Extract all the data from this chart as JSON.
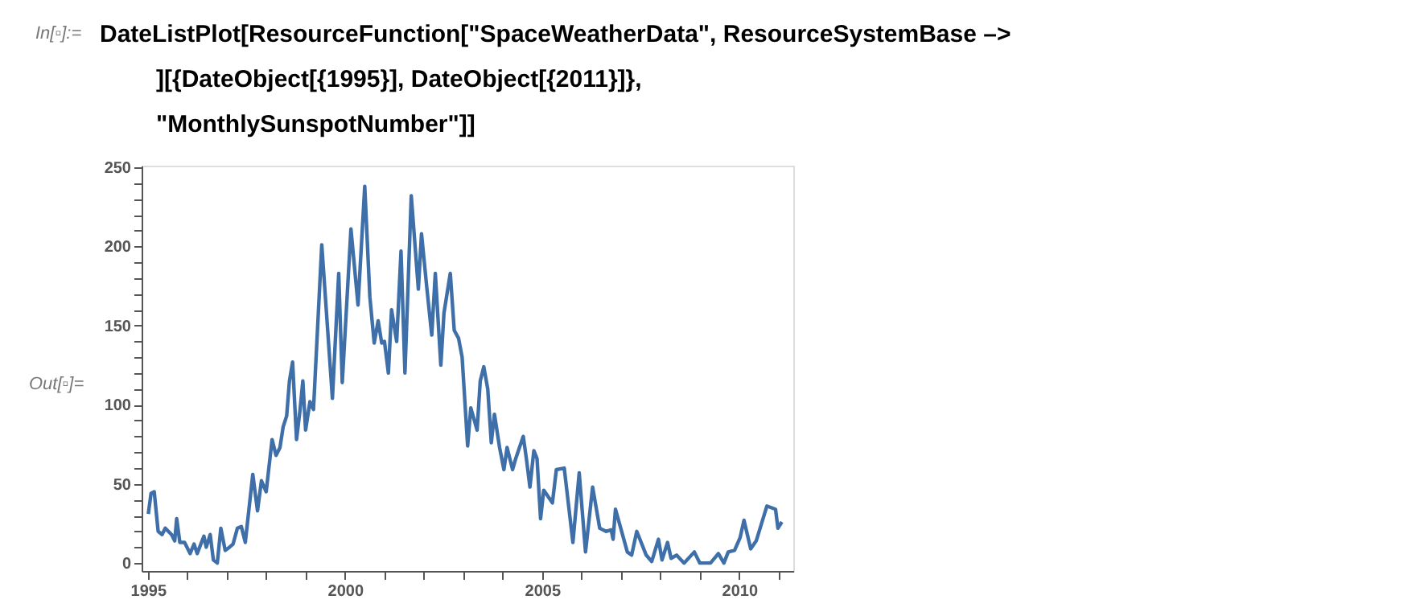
{
  "chart_data": {
    "type": "line",
    "annotations": [
      "In[▫]:=",
      "DateListPlot[ResourceFunction[\"SpaceWeatherData\", ResourceSystemBase –>",
      "][{DateObject[{1995}], DateObject[{2011}]},",
      "\"MonthlySunspotNumber\"]]",
      "Out[▫]="
    ],
    "x": [
      1995.01,
      1995.08,
      1995.16,
      1995.26,
      1995.36,
      1995.44,
      1995.6,
      1995.68,
      1995.73,
      1995.81,
      1995.93,
      1996.07,
      1996.17,
      1996.25,
      1996.42,
      1996.48,
      1996.58,
      1996.66,
      1996.76,
      1996.85,
      1996.96,
      1997.07,
      1997.16,
      1997.27,
      1997.37,
      1997.47,
      1997.66,
      1997.78,
      1997.88,
      1998.0,
      1998.15,
      1998.25,
      1998.35,
      1998.43,
      1998.52,
      1998.59,
      1998.67,
      1998.77,
      1998.86,
      1998.93,
      1999.0,
      1999.11,
      1999.2,
      1999.41,
      1999.68,
      1999.84,
      1999.93,
      2000.15,
      2000.33,
      2000.5,
      2000.63,
      2000.74,
      2000.84,
      2000.93,
      2001.0,
      2001.1,
      2001.18,
      2001.31,
      2001.42,
      2001.52,
      2001.68,
      2001.86,
      2001.94,
      2002.07,
      2002.2,
      2002.29,
      2002.43,
      2002.51,
      2002.67,
      2002.77,
      2002.88,
      2002.97,
      2003.11,
      2003.19,
      2003.35,
      2003.43,
      2003.52,
      2003.62,
      2003.71,
      2003.79,
      2003.92,
      2004.03,
      2004.11,
      2004.25,
      2004.33,
      2004.52,
      2004.6,
      2004.69,
      2004.79,
      2004.87,
      2004.96,
      2005.04,
      2005.26,
      2005.36,
      2005.56,
      2005.78,
      2005.94,
      2006.1,
      2006.28,
      2006.46,
      2006.62,
      2006.75,
      2006.8,
      2006.86,
      2006.96,
      2007.16,
      2007.27,
      2007.4,
      2007.64,
      2007.78,
      2007.95,
      2008.04,
      2008.18,
      2008.27,
      2008.41,
      2008.6,
      2008.86,
      2009.0,
      2009.27,
      2009.47,
      2009.61,
      2009.72,
      2009.88,
      2010.02,
      2010.12,
      2010.29,
      2010.43,
      2010.7,
      2010.92,
      2010.98,
      2011.08
    ],
    "series": [
      {
        "color": "#3f6fa8",
        "values": [
          31,
          44,
          45,
          20,
          18,
          22,
          18,
          14,
          28,
          13,
          13,
          6,
          12,
          6,
          17,
          10,
          18,
          2,
          0,
          22,
          8,
          10,
          12,
          22,
          23,
          13,
          56,
          33,
          52,
          45,
          78,
          68,
          73,
          86,
          93,
          115,
          127,
          78,
          97,
          115,
          84,
          102,
          97,
          201,
          104,
          183,
          114,
          211,
          163,
          238,
          168,
          139,
          153,
          139,
          140,
          120,
          160,
          140,
          197,
          120,
          232,
          173,
          208,
          175,
          144,
          183,
          125,
          158,
          183,
          147,
          142,
          130,
          74,
          98,
          84,
          115,
          124,
          110,
          76,
          94,
          73,
          59,
          73,
          59,
          66,
          80,
          66,
          48,
          71,
          66,
          28,
          46,
          38,
          59,
          60,
          13,
          57,
          7,
          48,
          22,
          20,
          21,
          15,
          34,
          25,
          7,
          5,
          20,
          5,
          1,
          15,
          2,
          13,
          3,
          5,
          0,
          7,
          0,
          0,
          6,
          0,
          7,
          8,
          16,
          27,
          9,
          14,
          36,
          34,
          22,
          26
        ]
      }
    ],
    "xlim": [
      1994.84,
      2011.37
    ],
    "ylim": [
      -5,
      251
    ],
    "xticks": [
      1995,
      {
        "value": 1996,
        "label": null
      },
      {
        "value": 1997,
        "label": null
      },
      {
        "value": 1998,
        "label": null
      },
      {
        "value": 1999,
        "label": null
      },
      2000,
      {
        "value": 2001,
        "label": null
      },
      {
        "value": 2002,
        "label": null
      },
      {
        "value": 2003,
        "label": null
      },
      {
        "value": 2004,
        "label": null
      },
      2005,
      {
        "value": 2006,
        "label": null
      },
      {
        "value": 2007,
        "label": null
      },
      {
        "value": 2008,
        "label": null
      },
      {
        "value": 2009,
        "label": null
      },
      2010,
      {
        "value": 2011,
        "label": null
      }
    ],
    "yticks": [
      0,
      {
        "value": 10,
        "label": null
      },
      {
        "value": 20,
        "label": null
      },
      {
        "value": 30,
        "label": null
      },
      {
        "value": 40,
        "label": null
      },
      50,
      {
        "value": 60,
        "label": null
      },
      {
        "value": 70,
        "label": null
      },
      {
        "value": 80,
        "label": null
      },
      {
        "value": 90,
        "label": null
      },
      100,
      {
        "value": 110,
        "label": null
      },
      {
        "value": 120,
        "label": null
      },
      {
        "value": 130,
        "label": null
      },
      {
        "value": 140,
        "label": null
      },
      150,
      {
        "value": 160,
        "label": null
      },
      {
        "value": 170,
        "label": null
      },
      {
        "value": 180,
        "label": null
      },
      {
        "value": 190,
        "label": null
      },
      200,
      {
        "value": 210,
        "label": null
      },
      {
        "value": 220,
        "label": null
      },
      {
        "value": 230,
        "label": null
      },
      {
        "value": 240,
        "label": null
      },
      250
    ],
    "grid": false,
    "marker": "none",
    "line_style": "solid"
  }
}
